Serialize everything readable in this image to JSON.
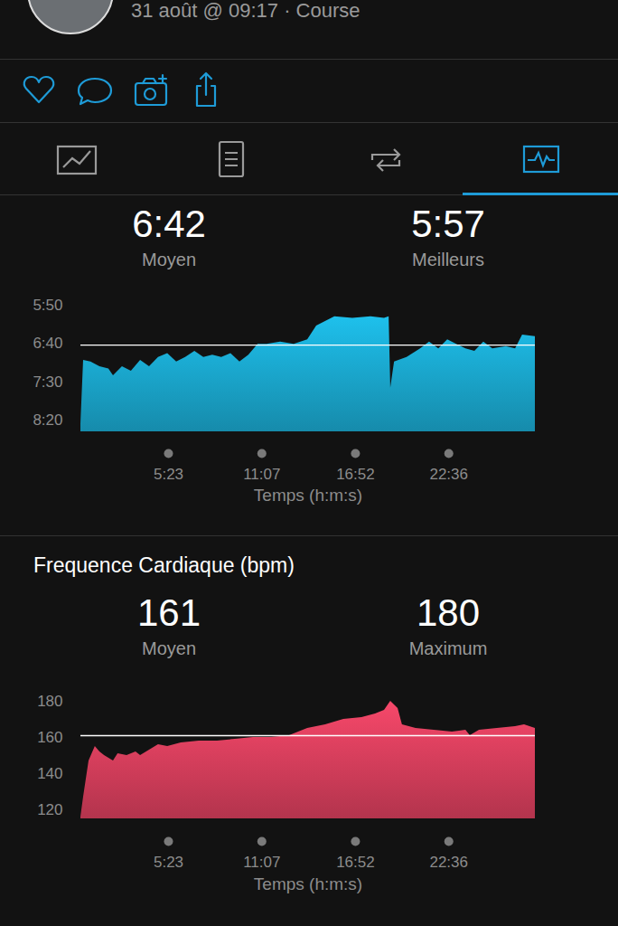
{
  "header": {
    "subtitle": "31 août @ 09:17 · Course"
  },
  "chart_data": [
    {
      "type": "area",
      "stats": [
        {
          "value": "6:42",
          "label": "Moyen"
        },
        {
          "value": "5:57",
          "label": "Meilleurs"
        }
      ],
      "x": [
        0,
        10,
        37,
        70,
        103,
        120,
        153,
        186,
        220,
        253,
        286,
        320,
        353,
        386,
        420,
        453,
        486,
        519,
        553,
        586,
        619,
        653,
        686,
        736,
        786,
        836,
        869,
        936,
        1002,
        1069,
        1119,
        1136,
        1142,
        1156,
        1202,
        1252,
        1285,
        1319,
        1352,
        1385,
        1419,
        1452,
        1485,
        1518,
        1568,
        1602,
        1628,
        1675
      ],
      "values": [
        505,
        422,
        424,
        430,
        433,
        442,
        430,
        436,
        422,
        430,
        418,
        413,
        424,
        418,
        410,
        418,
        415,
        418,
        413,
        424,
        415,
        401,
        401,
        398,
        401,
        395,
        377,
        365,
        367,
        365,
        367,
        365,
        458,
        424,
        418,
        407,
        398,
        407,
        395,
        401,
        407,
        410,
        398,
        407,
        404,
        407,
        389,
        391
      ],
      "color": "#1ec0ec",
      "reference_line": 402,
      "xlabel": "Temps (h:m:s)",
      "xlim": [
        0,
        1675
      ],
      "xticks": [
        {
          "value": 323,
          "label": "5:23"
        },
        {
          "value": 667,
          "label": "11:07"
        },
        {
          "value": 1012,
          "label": "16:52"
        },
        {
          "value": 1356,
          "label": "22:36"
        }
      ],
      "ylim": [
        515,
        350
      ],
      "yticks": [
        {
          "value": 350,
          "label": "5:50"
        },
        {
          "value": 400,
          "label": "6:40"
        },
        {
          "value": 450,
          "label": "7:30"
        },
        {
          "value": 500,
          "label": "8:20"
        }
      ],
      "grid": false
    },
    {
      "type": "area",
      "title": "Frequence Cardiaque (bpm)",
      "stats": [
        {
          "value": 161,
          "label": "Moyen"
        },
        {
          "value": 180,
          "label": "Maximum"
        }
      ],
      "x": [
        0,
        10,
        30,
        53,
        70,
        87,
        120,
        137,
        170,
        203,
        220,
        253,
        286,
        320,
        370,
        436,
        503,
        569,
        636,
        703,
        769,
        836,
        902,
        969,
        1036,
        1086,
        1119,
        1142,
        1169,
        1185,
        1235,
        1302,
        1369,
        1419,
        1435,
        1469,
        1535,
        1602,
        1635,
        1675
      ],
      "values": [
        116,
        127,
        147,
        155,
        152,
        150,
        147,
        151,
        150,
        152,
        150,
        153,
        156,
        155,
        157,
        158,
        158,
        159,
        160,
        160,
        161,
        165,
        167,
        170,
        171,
        173,
        175,
        180,
        176,
        167,
        165,
        164,
        163,
        164,
        161,
        164,
        165,
        166,
        167,
        165
      ],
      "color": "#f7486a",
      "reference_line": 161,
      "xlabel": "Temps (h:m:s)",
      "xlim": [
        0,
        1675
      ],
      "xticks": [
        {
          "value": 323,
          "label": "5:23"
        },
        {
          "value": 667,
          "label": "11:07"
        },
        {
          "value": 1012,
          "label": "16:52"
        },
        {
          "value": 1356,
          "label": "22:36"
        }
      ],
      "ylim": [
        115,
        180
      ],
      "yticks": [
        120,
        140,
        160,
        180
      ],
      "grid": false
    }
  ]
}
